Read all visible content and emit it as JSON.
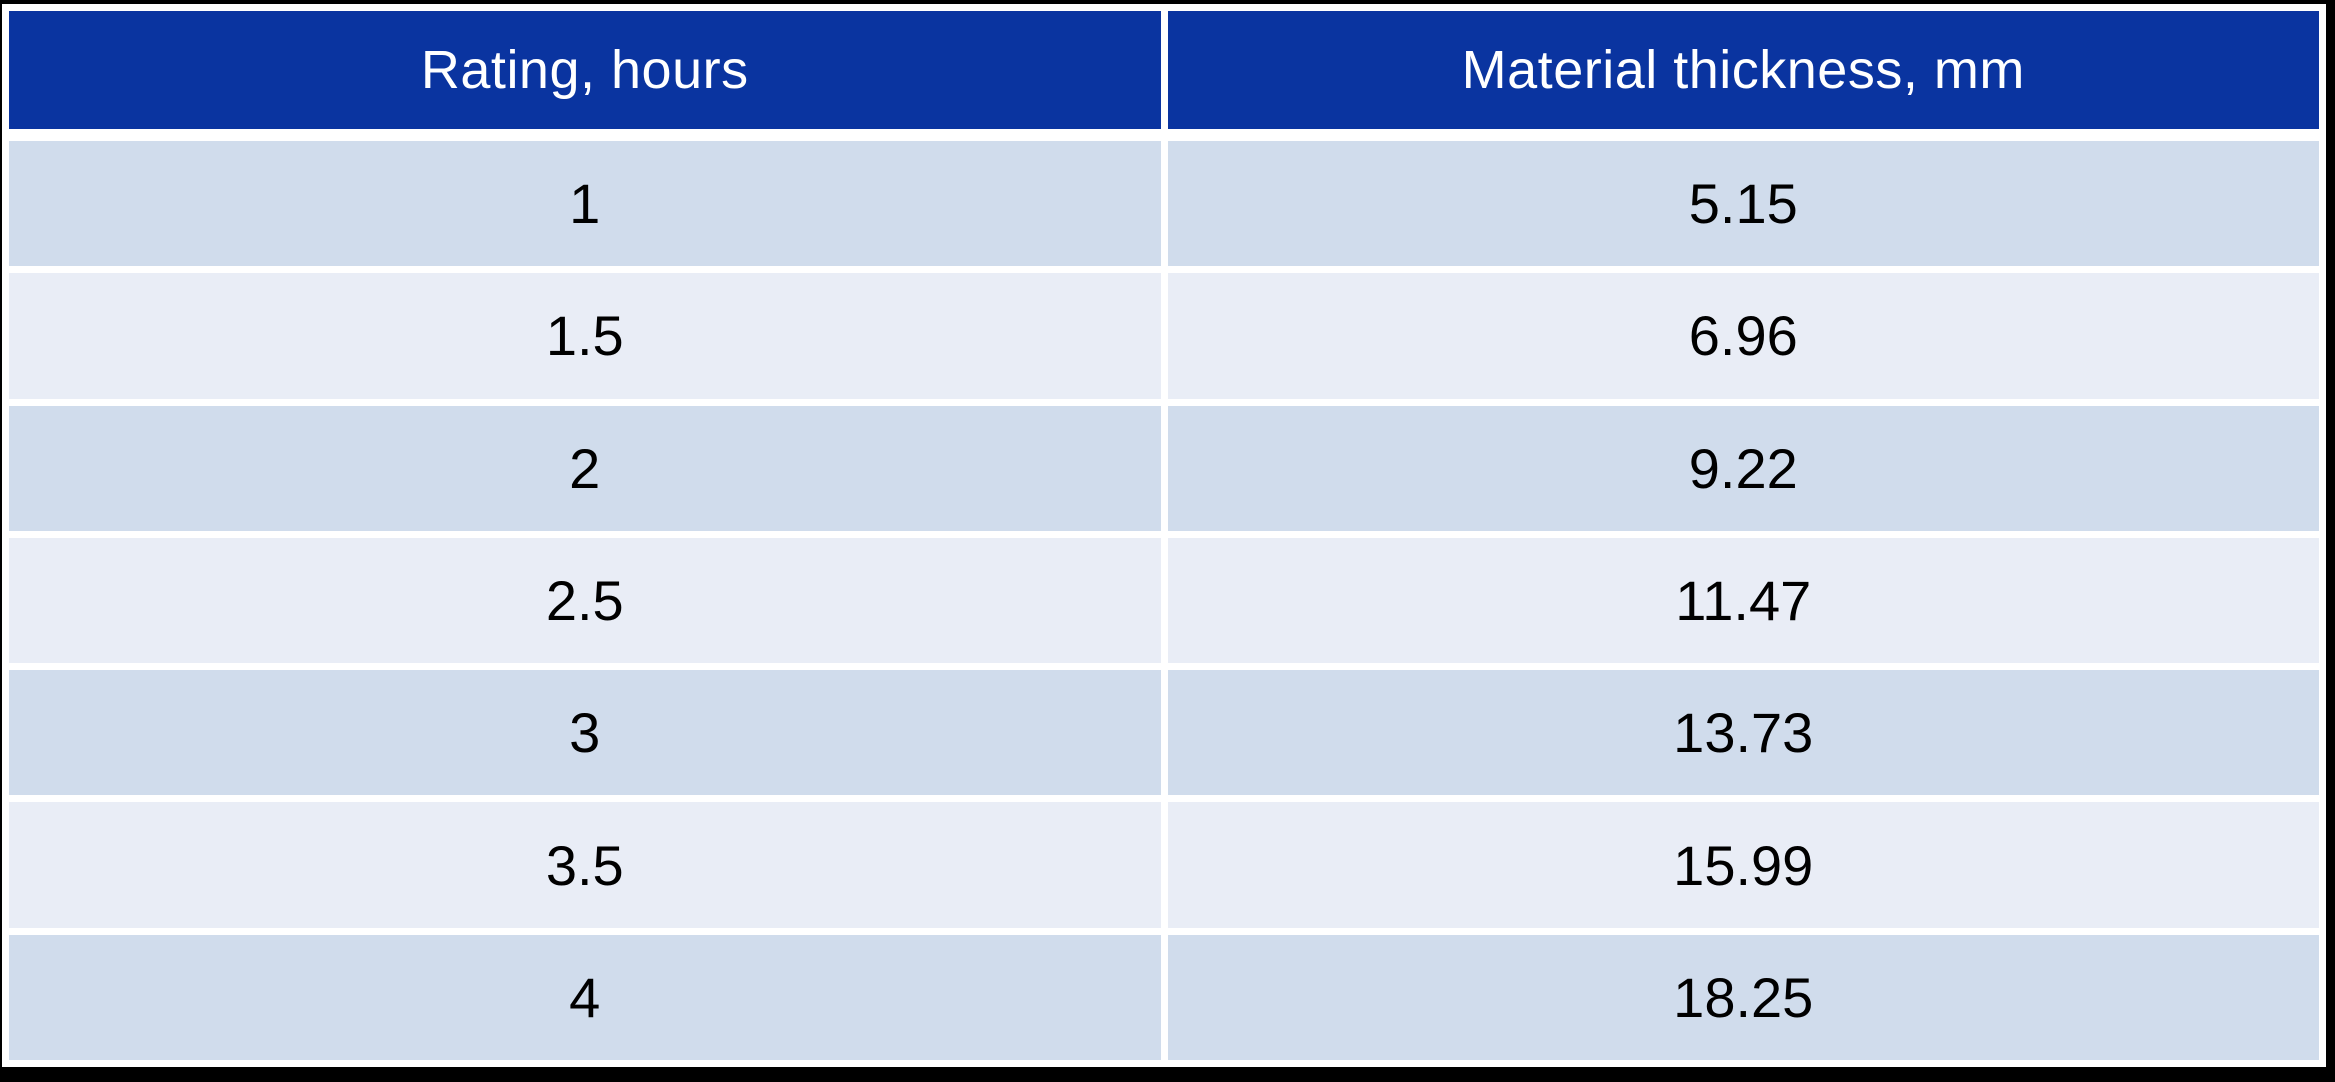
{
  "table": {
    "columns": [
      {
        "key": "rating",
        "label": "Rating, hours"
      },
      {
        "key": "thickness",
        "label": "Material thickness, mm"
      }
    ],
    "rows": [
      {
        "rating": "1",
        "thickness": "5.15"
      },
      {
        "rating": "1.5",
        "thickness": "6.96"
      },
      {
        "rating": "2",
        "thickness": "9.22"
      },
      {
        "rating": "2.5",
        "thickness": "11.47"
      },
      {
        "rating": "3",
        "thickness": "13.73"
      },
      {
        "rating": "3.5",
        "thickness": "15.99"
      },
      {
        "rating": "4",
        "thickness": "18.25"
      }
    ]
  },
  "chart_data": {
    "type": "table",
    "columns": [
      "Rating, hours",
      "Material thickness, mm"
    ],
    "categories": [
      1,
      1.5,
      2,
      2.5,
      3,
      3.5,
      4
    ],
    "values": [
      5.15,
      6.96,
      9.22,
      11.47,
      13.73,
      15.99,
      18.25
    ],
    "xlabel": "Rating, hours",
    "ylabel": "Material thickness, mm"
  },
  "colors": {
    "header_bg": "#0a34a0",
    "header_text": "#ffffff",
    "row_odd_bg": "#d0dcec",
    "row_even_bg": "#e9edf6",
    "cell_text": "#000000",
    "grid_line": "#ffffff",
    "frame_border": "#000000"
  }
}
